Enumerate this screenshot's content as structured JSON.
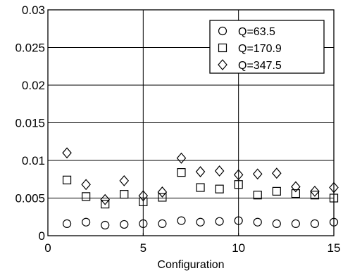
{
  "chart_data": {
    "type": "scatter",
    "xlabel": "Configuration",
    "ylabel": "",
    "xlim": [
      0,
      15
    ],
    "ylim": [
      0,
      0.03
    ],
    "xticks": [
      0,
      5,
      10,
      15
    ],
    "xtick_labels": [
      "0",
      "5",
      "10",
      "15"
    ],
    "yticks": [
      0,
      0.005,
      0.01,
      0.015,
      0.02,
      0.025,
      0.03
    ],
    "ytick_labels": [
      "0",
      "0.005",
      "0.01",
      "0.015",
      "0.02",
      "0.025",
      "0.03"
    ],
    "grid": true,
    "legend_position": "top-right",
    "series": [
      {
        "name": "Q=63.5",
        "marker": "circle",
        "x": [
          1,
          2,
          3,
          4,
          5,
          6,
          7,
          8,
          9,
          10,
          11,
          12,
          13,
          14,
          15
        ],
        "y": [
          0.0016,
          0.0018,
          0.0014,
          0.0015,
          0.0016,
          0.0016,
          0.002,
          0.0018,
          0.0019,
          0.002,
          0.0018,
          0.0016,
          0.0016,
          0.0016,
          0.0018
        ]
      },
      {
        "name": "Q=170.9",
        "marker": "square",
        "x": [
          1,
          2,
          3,
          4,
          5,
          6,
          7,
          8,
          9,
          10,
          11,
          12,
          13,
          14,
          15
        ],
        "y": [
          0.0074,
          0.0052,
          0.0042,
          0.0055,
          0.0045,
          0.0051,
          0.0084,
          0.0064,
          0.0062,
          0.0068,
          0.0054,
          0.0059,
          0.0056,
          0.0054,
          0.005
        ]
      },
      {
        "name": "Q=347.5",
        "marker": "diamond",
        "x": [
          1,
          2,
          3,
          4,
          5,
          6,
          7,
          8,
          9,
          10,
          11,
          12,
          13,
          14,
          15
        ],
        "y": [
          0.011,
          0.0068,
          0.0048,
          0.0073,
          0.0053,
          0.0058,
          0.0103,
          0.0085,
          0.0086,
          0.0081,
          0.0082,
          0.0083,
          0.0065,
          0.0059,
          0.0064
        ]
      }
    ]
  }
}
